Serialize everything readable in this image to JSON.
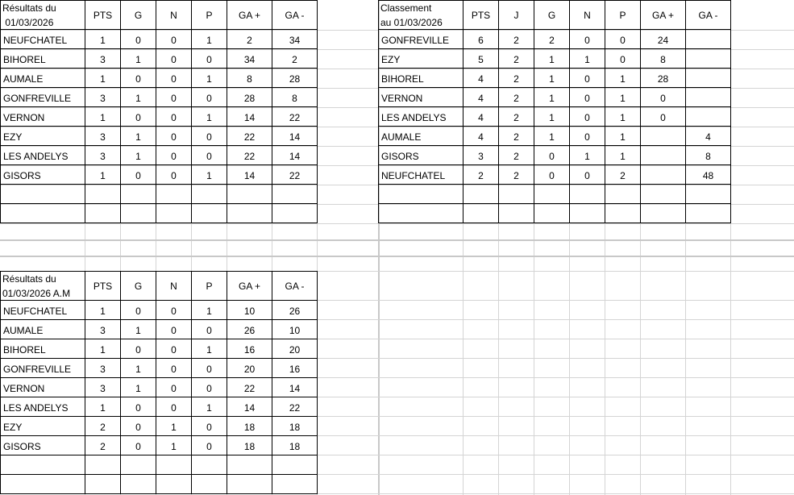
{
  "tables": [
    {
      "title": "Résultats du\n 01/03/2026",
      "headers": [
        "PTS",
        "G",
        "N",
        "P",
        "GA  +",
        "GA  -"
      ],
      "rows": [
        {
          "name": "NEUFCHATEL",
          "cells": [
            "1",
            "0",
            "0",
            "1",
            "2",
            "34"
          ]
        },
        {
          "name": "BIHOREL",
          "cells": [
            "3",
            "1",
            "0",
            "0",
            "34",
            "2"
          ]
        },
        {
          "name": "AUMALE",
          "cells": [
            "1",
            "0",
            "0",
            "1",
            "8",
            "28"
          ]
        },
        {
          "name": "GONFREVILLE",
          "cells": [
            "3",
            "1",
            "0",
            "0",
            "28",
            "8"
          ]
        },
        {
          "name": "VERNON",
          "cells": [
            "1",
            "0",
            "0",
            "1",
            "14",
            "22"
          ]
        },
        {
          "name": "EZY",
          "cells": [
            "3",
            "1",
            "0",
            "0",
            "22",
            "14"
          ]
        },
        {
          "name": "LES ANDELYS",
          "cells": [
            "3",
            "1",
            "0",
            "0",
            "22",
            "14"
          ]
        },
        {
          "name": "GISORS",
          "cells": [
            "1",
            "0",
            "0",
            "1",
            "14",
            "22"
          ]
        },
        {
          "name": "",
          "cells": [
            "",
            "",
            "",
            "",
            "",
            ""
          ]
        },
        {
          "name": "",
          "cells": [
            "",
            "",
            "",
            "",
            "",
            ""
          ]
        }
      ]
    },
    {
      "title": "Classement\nau 01/03/2026",
      "headers": [
        "PTS",
        "J",
        "G",
        "N",
        "P",
        "GA  +",
        "GA  -"
      ],
      "rows": [
        {
          "name": "GONFREVILLE",
          "cells": [
            "6",
            "2",
            "2",
            "0",
            "0",
            "24",
            ""
          ]
        },
        {
          "name": "EZY",
          "cells": [
            "5",
            "2",
            "1",
            "1",
            "0",
            "8",
            ""
          ]
        },
        {
          "name": "BIHOREL",
          "cells": [
            "4",
            "2",
            "1",
            "0",
            "1",
            "28",
            ""
          ]
        },
        {
          "name": "VERNON",
          "cells": [
            "4",
            "2",
            "1",
            "0",
            "1",
            "0",
            ""
          ]
        },
        {
          "name": "LES ANDELYS",
          "cells": [
            "4",
            "2",
            "1",
            "0",
            "1",
            "0",
            ""
          ]
        },
        {
          "name": "AUMALE",
          "cells": [
            "4",
            "2",
            "1",
            "0",
            "1",
            "",
            "4"
          ]
        },
        {
          "name": "GISORS",
          "cells": [
            "3",
            "2",
            "0",
            "1",
            "1",
            "",
            "8"
          ]
        },
        {
          "name": "NEUFCHATEL",
          "cells": [
            "2",
            "2",
            "0",
            "0",
            "2",
            "",
            "48"
          ]
        },
        {
          "name": "",
          "cells": [
            "",
            "",
            "",
            "",
            "",
            "",
            ""
          ]
        },
        {
          "name": "",
          "cells": [
            "",
            "",
            "",
            "",
            "",
            "",
            ""
          ]
        }
      ]
    },
    {
      "title": "Résultats du\n01/03/2026 A.M",
      "headers": [
        "PTS",
        "G",
        "N",
        "P",
        "GA  +",
        "GA  -"
      ],
      "rows": [
        {
          "name": "NEUFCHATEL",
          "cells": [
            "1",
            "0",
            "0",
            "1",
            "10",
            "26"
          ]
        },
        {
          "name": "AUMALE",
          "cells": [
            "3",
            "1",
            "0",
            "0",
            "26",
            "10"
          ]
        },
        {
          "name": "BIHOREL",
          "cells": [
            "1",
            "0",
            "0",
            "1",
            "16",
            "20"
          ]
        },
        {
          "name": "GONFREVILLE",
          "cells": [
            "3",
            "1",
            "0",
            "0",
            "20",
            "16"
          ]
        },
        {
          "name": "VERNON",
          "cells": [
            "3",
            "1",
            "0",
            "0",
            "22",
            "14"
          ]
        },
        {
          "name": "LES ANDELYS",
          "cells": [
            "1",
            "0",
            "0",
            "1",
            "14",
            "22"
          ]
        },
        {
          "name": "EZY",
          "cells": [
            "2",
            "0",
            "1",
            "0",
            "18",
            "18"
          ]
        },
        {
          "name": "GISORS",
          "cells": [
            "2",
            "0",
            "1",
            "0",
            "18",
            "18"
          ]
        },
        {
          "name": "",
          "cells": [
            "",
            "",
            "",
            "",
            "",
            ""
          ]
        },
        {
          "name": "",
          "cells": [
            "",
            "",
            "",
            "",
            "",
            ""
          ]
        }
      ]
    }
  ]
}
